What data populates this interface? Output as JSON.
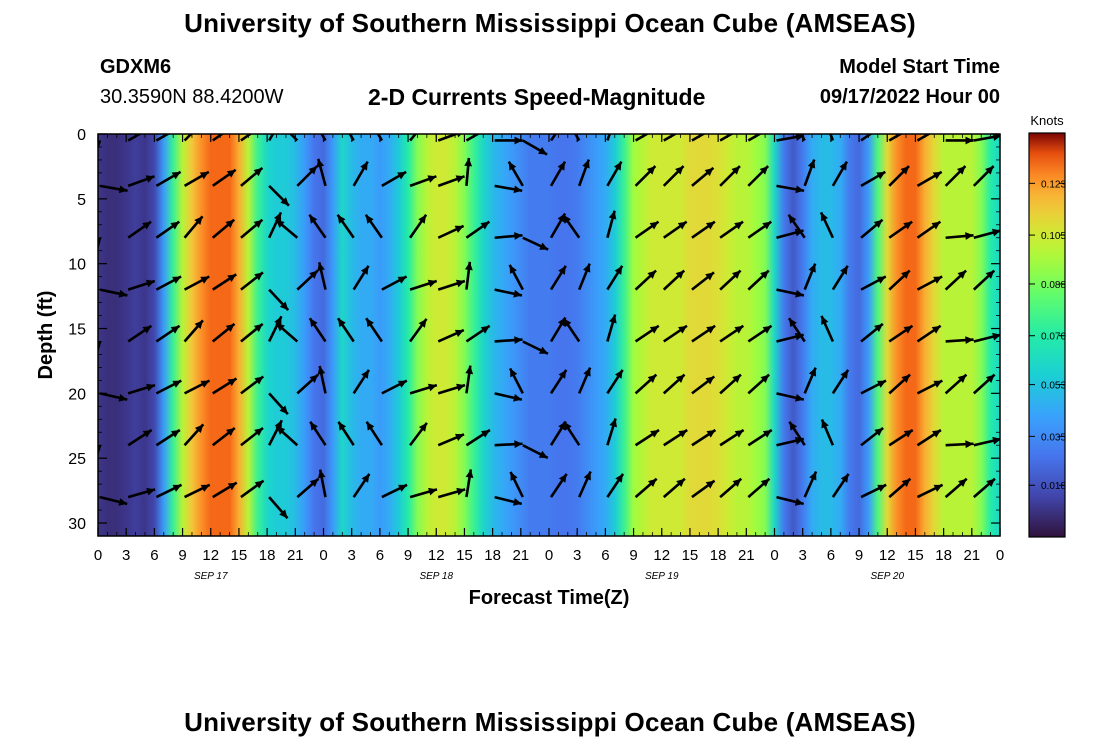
{
  "header": {
    "title": "University of Southern Mississippi Ocean Cube (AMSEAS)",
    "station_id": "GDXM6",
    "station_coords": "30.3590N  88.4200W",
    "subtitle": "2-D Currents Speed-Magnitude",
    "model_start_label": "Model Start Time",
    "model_start_value": "09/17/2022 Hour 00"
  },
  "footer": {
    "title": "University of Southern Mississippi Ocean Cube (AMSEAS)"
  },
  "chart_data": {
    "type": "heatmap",
    "title": "2-D Currents Speed-Magnitude",
    "xlabel": "Forecast Time(Z)",
    "ylabel": "Depth (ft)",
    "x_hours": [
      0,
      96
    ],
    "x_step_hours": 3,
    "x_tick_labels": [
      "0",
      "3",
      "6",
      "9",
      "12",
      "15",
      "18",
      "21",
      "0",
      "3",
      "6",
      "9",
      "12",
      "15",
      "18",
      "21",
      "0",
      "3",
      "6",
      "9",
      "12",
      "15",
      "18",
      "21",
      "0",
      "3",
      "6",
      "9",
      "12",
      "15",
      "18",
      "21",
      "0"
    ],
    "date_labels": [
      {
        "text": "SEP 17",
        "hour": 12
      },
      {
        "text": "SEP 18",
        "hour": 36
      },
      {
        "text": "SEP 19",
        "hour": 60
      },
      {
        "text": "SEP 20",
        "hour": 84
      }
    ],
    "ylim": [
      0,
      31
    ],
    "y_inverted": true,
    "y_ticks": [
      0,
      5,
      10,
      15,
      20,
      25,
      30
    ],
    "colorbar": {
      "label": "Knots",
      "range": [
        0,
        0.1405
      ],
      "ticks": [
        "0.123",
        "0.105",
        "0.088",
        "0.070",
        "0.053",
        "0.035",
        "0.018"
      ]
    },
    "speed_profile": {
      "description_hours": [
        0,
        1,
        2,
        3,
        4,
        5,
        6,
        7,
        8,
        9,
        10,
        11,
        12,
        13,
        14,
        15,
        16,
        17,
        18,
        19,
        20,
        21,
        22,
        23,
        24,
        25,
        26,
        27,
        28,
        29,
        30,
        31,
        32,
        33,
        34,
        35,
        36,
        37,
        38,
        39,
        40,
        41,
        42,
        43,
        44,
        45,
        46,
        47,
        48,
        49,
        50,
        51,
        52,
        53,
        54,
        55,
        56,
        57,
        58,
        59,
        60,
        61,
        62,
        63,
        64,
        65,
        66,
        67,
        68,
        69,
        70,
        71,
        72,
        73,
        74,
        75,
        76,
        77,
        78,
        79,
        80,
        81,
        82,
        83,
        84,
        85,
        86,
        87,
        88,
        89,
        90,
        91,
        92,
        93,
        94,
        95,
        96
      ],
      "knots": [
        0.01,
        0.008,
        0.008,
        0.01,
        0.012,
        0.01,
        0.015,
        0.04,
        0.075,
        0.1,
        0.115,
        0.125,
        0.13,
        0.13,
        0.13,
        0.12,
        0.1,
        0.075,
        0.06,
        0.055,
        0.055,
        0.05,
        0.04,
        0.028,
        0.025,
        0.04,
        0.06,
        0.05,
        0.045,
        0.045,
        0.04,
        0.045,
        0.055,
        0.07,
        0.09,
        0.1,
        0.105,
        0.105,
        0.1,
        0.09,
        0.075,
        0.06,
        0.05,
        0.045,
        0.04,
        0.035,
        0.03,
        0.03,
        0.03,
        0.028,
        0.028,
        0.03,
        0.035,
        0.04,
        0.045,
        0.055,
        0.075,
        0.095,
        0.1,
        0.105,
        0.105,
        0.105,
        0.105,
        0.11,
        0.11,
        0.11,
        0.108,
        0.105,
        0.1,
        0.1,
        0.095,
        0.09,
        0.06,
        0.03,
        0.02,
        0.03,
        0.045,
        0.05,
        0.05,
        0.045,
        0.03,
        0.025,
        0.04,
        0.08,
        0.11,
        0.125,
        0.13,
        0.13,
        0.12,
        0.11,
        0.1,
        0.1,
        0.1,
        0.1,
        0.09,
        0.07,
        0.06
      ]
    },
    "vector_depths_ft": [
      0.5,
      4,
      8,
      12,
      16,
      20,
      24,
      28
    ],
    "vector_hours": [
      0,
      3,
      6,
      9,
      12,
      15,
      18,
      21,
      24,
      27,
      30,
      33,
      36,
      39,
      42,
      45,
      48,
      51,
      54,
      57,
      60,
      63,
      66,
      69,
      72,
      75,
      78,
      81,
      84,
      87,
      90,
      93
    ],
    "vector_directions_deg": [
      [
        200,
        60,
        60,
        45,
        55,
        55,
        30,
        315,
        330,
        330,
        330,
        40,
        70,
        60,
        90,
        120,
        35,
        330,
        20,
        60,
        60,
        60,
        60,
        60,
        80,
        330,
        340,
        55,
        60,
        60,
        90,
        80
      ],
      [
        100,
        70,
        60,
        60,
        55,
        50,
        135,
        45,
        345,
        30,
        60,
        70,
        70,
        5,
        100,
        330,
        30,
        20,
        30,
        45,
        45,
        50,
        45,
        45,
        100,
        20,
        30,
        60,
        45,
        60,
        45,
        45
      ]
    ]
  }
}
